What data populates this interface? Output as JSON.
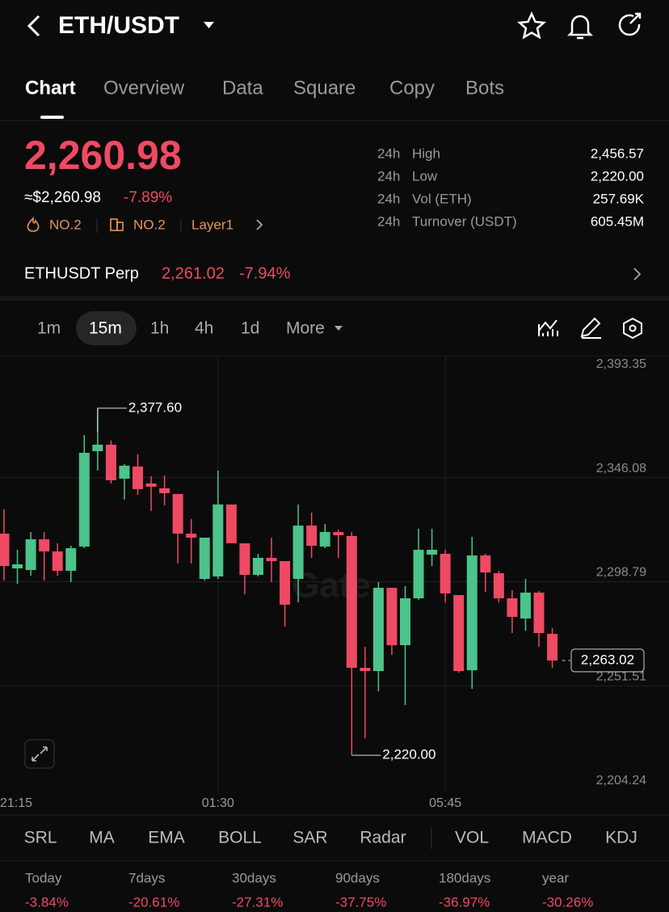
{
  "header": {
    "pair": "ETH/USDT"
  },
  "tabs": [
    "Chart",
    "Overview",
    "Data",
    "Square",
    "Copy",
    "Bots"
  ],
  "price": {
    "last": "2,260.98",
    "usd": "≈$2,260.98",
    "change": "-7.89%",
    "tags": [
      "NO.2",
      "NO.2",
      "Layer1"
    ]
  },
  "stats": [
    {
      "period": "24h",
      "label": "High",
      "value": "2,456.57"
    },
    {
      "period": "24h",
      "label": "Low",
      "value": "2,220.00"
    },
    {
      "period": "24h",
      "label": "Vol (ETH)",
      "value": "257.69K"
    },
    {
      "period": "24h",
      "label": "Turnover (USDT)",
      "value": "605.45M"
    }
  ],
  "perp": {
    "name": "ETHUSDT Perp",
    "price": "2,261.02",
    "change": "-7.94%"
  },
  "intervals": [
    "1m",
    "15m",
    "1h",
    "4h",
    "1d",
    "More"
  ],
  "chart_data": {
    "type": "candlestick",
    "watermark": "Gate",
    "categories": [
      "21:15",
      null,
      null,
      null,
      null,
      null,
      null,
      null,
      null,
      null,
      null,
      null,
      null,
      null,
      null,
      null,
      "01:30",
      null,
      null,
      null,
      null,
      null,
      null,
      null,
      null,
      null,
      null,
      null,
      null,
      null,
      null,
      null,
      null,
      "05:45",
      null,
      null,
      null,
      null,
      null,
      null,
      null,
      null
    ],
    "open": [
      2320.64,
      2304.85,
      2304.12,
      2318.07,
      2312.56,
      2303.75,
      2314.77,
      2358.1,
      2361.03,
      2345.61,
      2351.12,
      2343.41,
      2341.21,
      2338.64,
      2320.64,
      2300.08,
      2301.18,
      2333.86,
      2316.24,
      2301.92,
      2309.63,
      2308.16,
      2300.08,
      2324.31,
      2314.77,
      2321.38,
      2319.54,
      2259.69,
      2258.22,
      2296.04,
      2269.97,
      2291.27,
      2311.1,
      2311.46,
      2292.74,
      2258.59,
      2310.73,
      2302.65,
      2291.27,
      2282.09,
      2293.84,
      2275.11
    ],
    "high": [
      2331.66,
      2313.3,
      2321.38,
      2321.38,
      2316.24,
      2315.13,
      2365.44,
      2377.6,
      2362.87,
      2352.22,
      2356.63,
      2346.71,
      2347.08,
      2338.64,
      2327.25,
      2318.81,
      2349.28,
      2333.86,
      2316.24,
      2311.46,
      2318.81,
      2308.16,
      2333.86,
      2330.19,
      2325.05,
      2322.48,
      2321.38,
      2269.24,
      2298.61,
      2296.04,
      2296.77,
      2322.85,
      2322.85,
      2313.3,
      2292.74,
      2319.17,
      2311.46,
      2303.75,
      2294.94,
      2300.08,
      2294.57,
      2277.68
    ],
    "low": [
      2299.34,
      2297.88,
      2301.55,
      2299.34,
      2301.55,
      2298.61,
      2314.03,
      2349.28,
      2343.41,
      2336.07,
      2338.27,
      2330.92,
      2333.49,
      2307.06,
      2307.06,
      2299.34,
      2300.08,
      2316.24,
      2293.1,
      2301.18,
      2298.61,
      2278.41,
      2289.43,
      2309.63,
      2314.03,
      2309.63,
      2220.0,
      2227.74,
      2249.04,
      2265.56,
      2242.8,
      2290.53,
      2305.95,
      2289.43,
      2257.48,
      2250.14,
      2294.2,
      2289.43,
      2275.48,
      2276.58,
      2269.24,
      2259.69
    ],
    "close": [
      2305.95,
      2306.69,
      2318.07,
      2312.56,
      2303.75,
      2314.03,
      2357.36,
      2361.03,
      2344.88,
      2351.49,
      2340.84,
      2341.94,
      2339.0,
      2320.64,
      2318.81,
      2318.81,
      2333.86,
      2316.24,
      2301.92,
      2309.63,
      2308.16,
      2288.33,
      2324.31,
      2315.13,
      2321.38,
      2319.91,
      2259.69,
      2258.22,
      2296.04,
      2269.97,
      2291.27,
      2313.3,
      2313.3,
      2293.47,
      2258.22,
      2310.73,
      2303.02,
      2291.27,
      2282.82,
      2293.84,
      2275.48,
      2263.02
    ],
    "up_color": "#4cc38a",
    "down_color": "#ee4a63",
    "ylim": [
      2204.24,
      2401.43
    ],
    "yticks": [
      {
        "value": 2204.24,
        "label": "2,204.24"
      },
      {
        "value": 2251.51,
        "label": "2,251.51"
      },
      {
        "value": 2298.79,
        "label": "2,298.79"
      },
      {
        "value": 2346.08,
        "label": "2,346.08"
      },
      {
        "value": 2393.35,
        "label": "2,393.35"
      }
    ],
    "grid": true,
    "high_marker": {
      "value": 2377.6,
      "label": "2,377.60"
    },
    "low_marker": {
      "value": 2220.0,
      "label": "2,220.00"
    },
    "last_price": {
      "value": 2263.02,
      "label": "2,263.02"
    }
  },
  "indicators": [
    "SRL",
    "MA",
    "EMA",
    "BOLL",
    "SAR",
    "Radar",
    "VOL",
    "MACD",
    "KDJ"
  ],
  "performance": [
    {
      "period": "Today",
      "change": "-3.84%"
    },
    {
      "period": "7days",
      "change": "-20.61%"
    },
    {
      "period": "30days",
      "change": "-27.31%"
    },
    {
      "period": "90days",
      "change": "-37.75%"
    },
    {
      "period": "180days",
      "change": "-36.97%"
    },
    {
      "period": "year",
      "change": "-30.26%"
    }
  ]
}
